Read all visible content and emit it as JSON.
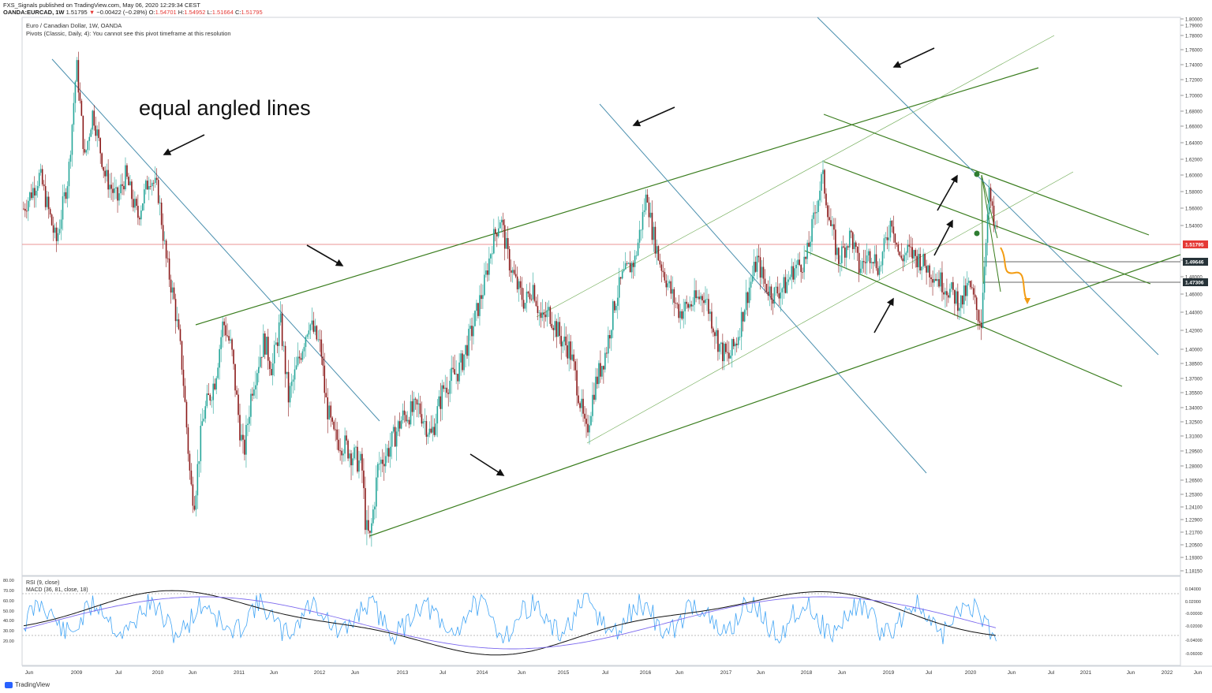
{
  "header": {
    "publisher_line": "FXS_Signals published on TradingView.com, May 06, 2020 12:29:34 CEST",
    "symbol": "OANDA:EURCAD, 1W",
    "last": "1.51795",
    "change": "−0.00422 (−0.28%)",
    "open_label": "O:",
    "open": "1.54701",
    "high_label": "H:",
    "high": "1.54952",
    "low_label": "L:",
    "low": "1.51664",
    "close_label": "C:",
    "close": "1.51795"
  },
  "chart_title": "Euro / Canadian Dollar, 1W, OANDA",
  "pivots_note": "Pivots (Classic, Daily, 4): You cannot see this pivot timeframe at this resolution",
  "annotation": "equal angled lines",
  "rsi_label": "RSI (9, close)",
  "macd_label": "MACD (36, 81, close, 18)",
  "footer": {
    "brand": "TradingView"
  },
  "colors": {
    "up": "#26a69a",
    "down": "#8b1a1a",
    "trend_green": "#3a7d1e",
    "trend_blue": "#4a8fae",
    "rsi": "#42a5f5",
    "macd": "#111111",
    "signal": "#7b68ee",
    "hline": "#e57373",
    "orange": "#f39c12"
  },
  "chart_data": {
    "type": "candlestick",
    "title": "Euro / Canadian Dollar, 1W, OANDA",
    "price_axis_ticks": [
      "1.80000",
      "1.79000",
      "1.78000",
      "1.76000",
      "1.74000",
      "1.72000",
      "1.70000",
      "1.68000",
      "1.66000",
      "1.64000",
      "1.62000",
      "1.60000",
      "1.58000",
      "1.56000",
      "1.54000",
      "1.50000",
      "1.48000",
      "1.46000",
      "1.44000",
      "1.42000",
      "1.40000",
      "1.38500",
      "1.37000",
      "1.35500",
      "1.34000",
      "1.32500",
      "1.31000",
      "1.29500",
      "1.28000",
      "1.26500",
      "1.25300",
      "1.24100",
      "1.22900",
      "1.21700",
      "1.20500",
      "1.19300",
      "1.18150"
    ],
    "price_labels": [
      {
        "value": "1.51795",
        "kind": "last"
      },
      {
        "value": "1.49646",
        "kind": "level"
      },
      {
        "value": "1.47306",
        "kind": "level"
      }
    ],
    "time_axis_labels": [
      "Jun",
      "2009",
      "Jul",
      "2010",
      "Jun",
      "2011",
      "Jun",
      "2012",
      "Jun",
      "2013",
      "Jul",
      "2014",
      "Jun",
      "2015",
      "Jul",
      "2016",
      "Jun",
      "2017",
      "Jun",
      "2018",
      "Jun",
      "2019",
      "Jul",
      "2020",
      "Jun",
      "Jul",
      "2021",
      "Jun",
      "2022",
      "Jun"
    ],
    "ylim": [
      1.18,
      1.8
    ],
    "rsi_axis_ticks": [
      "80.00",
      "70.00",
      "60.00",
      "50.00",
      "40.00",
      "30.00",
      "20.00"
    ],
    "macd_axis_ticks": [
      "0.04000",
      "0.02000",
      "-0.00000",
      "-0.02000",
      "-0.04000",
      "-0.06000"
    ],
    "price_path": [
      [
        2008.35,
        1.56
      ],
      [
        2008.55,
        1.6
      ],
      [
        2008.75,
        1.52
      ],
      [
        2008.9,
        1.6
      ],
      [
        2009.0,
        1.74
      ],
      [
        2009.1,
        1.62
      ],
      [
        2009.2,
        1.68
      ],
      [
        2009.35,
        1.6
      ],
      [
        2009.5,
        1.57
      ],
      [
        2009.6,
        1.6
      ],
      [
        2009.75,
        1.55
      ],
      [
        2009.9,
        1.6
      ],
      [
        2010.0,
        1.58
      ],
      [
        2010.1,
        1.5
      ],
      [
        2010.2,
        1.45
      ],
      [
        2010.3,
        1.38
      ],
      [
        2010.4,
        1.26
      ],
      [
        2010.45,
        1.25
      ],
      [
        2010.55,
        1.33
      ],
      [
        2010.7,
        1.37
      ],
      [
        2010.8,
        1.43
      ],
      [
        2010.9,
        1.4
      ],
      [
        2011.0,
        1.32
      ],
      [
        2011.05,
        1.29
      ],
      [
        2011.15,
        1.36
      ],
      [
        2011.3,
        1.41
      ],
      [
        2011.4,
        1.38
      ],
      [
        2011.5,
        1.43
      ],
      [
        2011.6,
        1.35
      ],
      [
        2011.7,
        1.38
      ],
      [
        2011.85,
        1.43
      ],
      [
        2012.0,
        1.4
      ],
      [
        2012.05,
        1.35
      ],
      [
        2012.15,
        1.31
      ],
      [
        2012.3,
        1.3
      ],
      [
        2012.4,
        1.29
      ],
      [
        2012.5,
        1.28
      ],
      [
        2012.55,
        1.22
      ],
      [
        2012.6,
        1.21
      ],
      [
        2012.7,
        1.28
      ],
      [
        2012.85,
        1.3
      ],
      [
        2013.0,
        1.33
      ],
      [
        2013.2,
        1.34
      ],
      [
        2013.35,
        1.31
      ],
      [
        2013.5,
        1.36
      ],
      [
        2013.7,
        1.38
      ],
      [
        2013.85,
        1.42
      ],
      [
        2014.0,
        1.47
      ],
      [
        2014.1,
        1.52
      ],
      [
        2014.2,
        1.55
      ],
      [
        2014.3,
        1.5
      ],
      [
        2014.4,
        1.47
      ],
      [
        2014.5,
        1.45
      ],
      [
        2014.6,
        1.47
      ],
      [
        2014.7,
        1.43
      ],
      [
        2014.8,
        1.44
      ],
      [
        2014.95,
        1.41
      ],
      [
        2015.05,
        1.4
      ],
      [
        2015.15,
        1.36
      ],
      [
        2015.25,
        1.31
      ],
      [
        2015.35,
        1.36
      ],
      [
        2015.5,
        1.4
      ],
      [
        2015.6,
        1.45
      ],
      [
        2015.7,
        1.48
      ],
      [
        2015.85,
        1.5
      ],
      [
        2016.0,
        1.58
      ],
      [
        2016.05,
        1.54
      ],
      [
        2016.15,
        1.5
      ],
      [
        2016.3,
        1.46
      ],
      [
        2016.4,
        1.44
      ],
      [
        2016.55,
        1.45
      ],
      [
        2016.7,
        1.46
      ],
      [
        2016.8,
        1.43
      ],
      [
        2016.9,
        1.4
      ],
      [
        2017.0,
        1.39
      ],
      [
        2017.1,
        1.41
      ],
      [
        2017.2,
        1.45
      ],
      [
        2017.35,
        1.5
      ],
      [
        2017.45,
        1.47
      ],
      [
        2017.55,
        1.46
      ],
      [
        2017.7,
        1.47
      ],
      [
        2017.8,
        1.49
      ],
      [
        2017.95,
        1.5
      ],
      [
        2018.05,
        1.55
      ],
      [
        2018.15,
        1.6
      ],
      [
        2018.25,
        1.54
      ],
      [
        2018.35,
        1.5
      ],
      [
        2018.5,
        1.53
      ],
      [
        2018.6,
        1.49
      ],
      [
        2018.75,
        1.51
      ],
      [
        2018.85,
        1.49
      ],
      [
        2019.0,
        1.55
      ],
      [
        2019.1,
        1.5
      ],
      [
        2019.2,
        1.51
      ],
      [
        2019.35,
        1.5
      ],
      [
        2019.45,
        1.49
      ],
      [
        2019.55,
        1.48
      ],
      [
        2019.65,
        1.47
      ],
      [
        2019.75,
        1.46
      ],
      [
        2019.85,
        1.45
      ],
      [
        2019.95,
        1.47
      ],
      [
        2020.05,
        1.44
      ],
      [
        2020.1,
        1.43
      ],
      [
        2020.15,
        1.52
      ],
      [
        2020.2,
        1.58
      ],
      [
        2020.25,
        1.54
      ],
      [
        2020.3,
        1.53
      ]
    ]
  }
}
